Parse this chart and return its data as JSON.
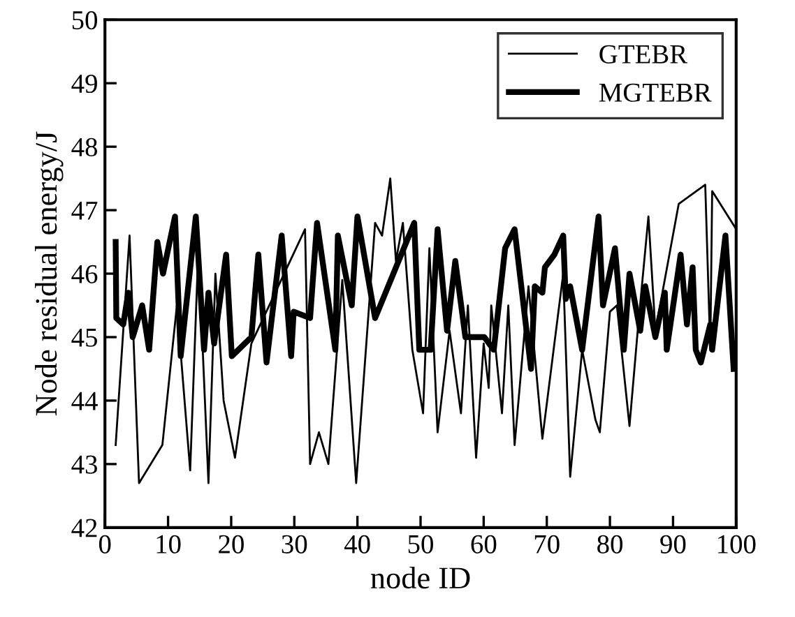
{
  "chart_data": {
    "type": "line",
    "xlabel": "node ID",
    "ylabel": "Node residual energy/J",
    "xlim": [
      0,
      100
    ],
    "ylim": [
      42,
      50
    ],
    "xticks": [
      0,
      10,
      20,
      30,
      40,
      50,
      60,
      70,
      80,
      90,
      100
    ],
    "yticks": [
      42,
      43,
      44,
      45,
      46,
      47,
      48,
      49,
      50
    ],
    "grid": false,
    "legend": "top right",
    "marker": "none",
    "line_style": "solid",
    "series": [
      {
        "name": "GTEBR",
        "color": "#000000",
        "x": [
          1.7,
          3.9,
          5.4,
          9.1,
          11.4,
          13.5,
          14.8,
          16.4,
          17.5,
          18.8,
          20.6,
          23.2,
          31.7,
          32.5,
          33.9,
          35.4,
          37.6,
          39.8,
          42.8,
          43.9,
          45.2,
          46.1,
          47.2,
          48.7,
          50.4,
          51.4,
          52.7,
          54.6,
          56.4,
          57.5,
          58.8,
          60.0,
          60.8,
          61.2,
          62.9,
          63.9,
          64.9,
          67.1,
          69.3,
          72.6,
          73.7,
          75.6,
          77.7,
          78.4,
          80.0,
          81.1,
          83.1,
          84.4,
          86.1,
          87.2,
          90.9,
          95.1,
          95.9,
          96.2,
          100
        ],
        "values": [
          43.3,
          46.6,
          42.7,
          43.3,
          45.5,
          42.9,
          46.4,
          42.7,
          46.0,
          44.0,
          43.1,
          44.9,
          46.7,
          43.0,
          43.5,
          43.0,
          45.9,
          42.7,
          46.8,
          46.6,
          47.5,
          46.2,
          46.8,
          44.8,
          43.8,
          46.4,
          43.5,
          45.1,
          43.8,
          45.5,
          43.1,
          44.9,
          44.2,
          45.5,
          43.8,
          45.5,
          43.3,
          45.8,
          43.4,
          46.0,
          42.8,
          44.8,
          43.7,
          43.5,
          45.4,
          45.5,
          43.6,
          45.1,
          46.9,
          45.1,
          47.1,
          47.4,
          44.8,
          47.3,
          46.7
        ]
      },
      {
        "name": "MGTEBR",
        "color": "#000000",
        "x": [
          1.7,
          1.8,
          2.9,
          3.7,
          4.4,
          5.9,
          7.0,
          8.3,
          9.2,
          11.1,
          12.0,
          14.4,
          15.7,
          16.4,
          17.3,
          19.2,
          20.1,
          23.2,
          24.3,
          25.6,
          28.0,
          29.5,
          29.9,
          32.5,
          33.6,
          36.5,
          36.9,
          39.1,
          40.0,
          42.8,
          49.0,
          49.8,
          51.6,
          52.7,
          54.2,
          55.5,
          57.1,
          60.1,
          61.6,
          63.4,
          64.9,
          67.5,
          68.1,
          69.3,
          69.7,
          71.2,
          72.6,
          73.0,
          73.7,
          75.6,
          78.2,
          78.9,
          80.8,
          82.2,
          83.1,
          84.8,
          85.6,
          87.2,
          88.7,
          89.0,
          91.2,
          92.2,
          93.1,
          93.6,
          94.4,
          95.9,
          96.2,
          98.3,
          99.6
        ],
        "values": [
          46.5,
          45.3,
          45.2,
          45.7,
          45.0,
          45.5,
          44.8,
          46.5,
          46.0,
          46.9,
          44.7,
          46.9,
          44.8,
          45.7,
          44.9,
          46.3,
          44.7,
          45.0,
          46.3,
          44.6,
          46.6,
          44.7,
          45.4,
          45.3,
          46.8,
          44.8,
          46.6,
          45.5,
          46.9,
          45.3,
          46.8,
          44.8,
          44.8,
          46.7,
          45.1,
          46.2,
          45.0,
          45.0,
          44.8,
          46.4,
          46.7,
          44.5,
          45.8,
          45.7,
          46.1,
          46.3,
          46.6,
          45.6,
          45.8,
          44.8,
          46.9,
          45.5,
          46.4,
          44.8,
          46.0,
          45.1,
          45.8,
          45.0,
          45.7,
          44.8,
          46.3,
          45.2,
          46.1,
          44.8,
          44.6,
          45.2,
          44.8,
          46.6,
          44.5
        ]
      }
    ]
  }
}
